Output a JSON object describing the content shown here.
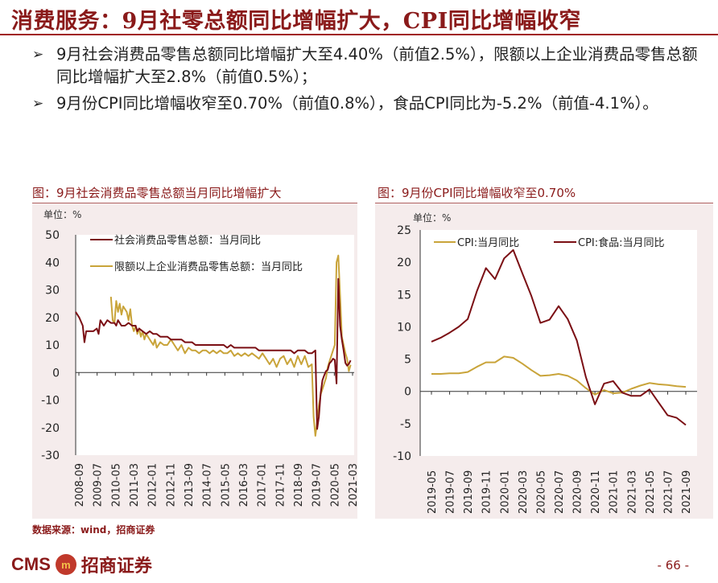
{
  "header": {
    "title": "消费服务：9月社零总额同比增幅扩大，CPI同比增幅收窄"
  },
  "bullets": [
    "9月社会消费品零售总额同比增幅扩大至4.40%（前值2.5%），限额以上企业消费品零售总额同比增幅扩大至2.8%（前值0.5%）；",
    "9月份CPI同比增幅收窄至0.70%（前值0.8%），食品CPI同比为-5.2%（前值-4.1%）。"
  ],
  "bullet_marker": "➢",
  "colors": {
    "dark_red": "#7b0f14",
    "gold": "#c9a43a",
    "brand": "#8a1a1a"
  },
  "chart_data": [
    {
      "type": "line",
      "title": "图：9月社会消费品零售总额当月同比增幅扩大",
      "unit_label": "单位：%",
      "ylim": [
        -30,
        50
      ],
      "yticks": [
        50,
        40,
        30,
        20,
        10,
        0,
        -10,
        -20,
        -30
      ],
      "xlim_index": [
        0,
        158
      ],
      "x_tick_labels": [
        "2008-09",
        "2009-07",
        "2010-05",
        "2011-03",
        "2012-01",
        "2012-11",
        "2013-09",
        "2014-07",
        "2015-05",
        "2016-03",
        "2017-01",
        "2017-11",
        "2018-09",
        "2019-07",
        "2020-05",
        "2021-03"
      ],
      "series": [
        {
          "name": "社会消费品零售总额：当月同比",
          "color": "#7b0f14",
          "points": [
            [
              0,
              22
            ],
            [
              2,
              20
            ],
            [
              4,
              17
            ],
            [
              5,
              11
            ],
            [
              6,
              15
            ],
            [
              8,
              15
            ],
            [
              10,
              15
            ],
            [
              12,
              16
            ],
            [
              13,
              14
            ],
            [
              14,
              19
            ],
            [
              16,
              17
            ],
            [
              18,
              19
            ],
            [
              20,
              18
            ],
            [
              22,
              18
            ],
            [
              23,
              17
            ],
            [
              24,
              19
            ],
            [
              26,
              17
            ],
            [
              28,
              17
            ],
            [
              30,
              18
            ],
            [
              32,
              17
            ],
            [
              34,
              17
            ],
            [
              35,
              15
            ],
            [
              36,
              16
            ],
            [
              38,
              15
            ],
            [
              40,
              14
            ],
            [
              42,
              15
            ],
            [
              44,
              14
            ],
            [
              46,
              14
            ],
            [
              48,
              13
            ],
            [
              50,
              13
            ],
            [
              52,
              13
            ],
            [
              54,
              12
            ],
            [
              56,
              12
            ],
            [
              58,
              12
            ],
            [
              60,
              12
            ],
            [
              62,
              11
            ],
            [
              64,
              11
            ],
            [
              66,
              11
            ],
            [
              68,
              10
            ],
            [
              70,
              10
            ],
            [
              72,
              10
            ],
            [
              74,
              10
            ],
            [
              76,
              10
            ],
            [
              78,
              10
            ],
            [
              80,
              10
            ],
            [
              82,
              10
            ],
            [
              84,
              10
            ],
            [
              86,
              9
            ],
            [
              88,
              10
            ],
            [
              90,
              9
            ],
            [
              92,
              9
            ],
            [
              94,
              9
            ],
            [
              96,
              9
            ],
            [
              98,
              9
            ],
            [
              100,
              9
            ],
            [
              102,
              9
            ],
            [
              104,
              8
            ],
            [
              106,
              8
            ],
            [
              108,
              8
            ],
            [
              110,
              8
            ],
            [
              112,
              8
            ],
            [
              114,
              8
            ],
            [
              116,
              8
            ],
            [
              118,
              8
            ],
            [
              120,
              8
            ],
            [
              122,
              8
            ],
            [
              124,
              7
            ],
            [
              126,
              8
            ],
            [
              128,
              8
            ],
            [
              130,
              8
            ],
            [
              132,
              7
            ],
            [
              134,
              7
            ],
            [
              136,
              8
            ],
            [
              137,
              -20.5
            ],
            [
              138,
              -16
            ],
            [
              139,
              -7.5
            ],
            [
              140,
              -2.8
            ],
            [
              141,
              -1
            ],
            [
              142,
              0.5
            ],
            [
              143,
              1
            ],
            [
              144,
              3.3
            ],
            [
              145,
              4
            ],
            [
              146,
              5
            ],
            [
              147,
              4.6
            ],
            [
              148,
              -4
            ],
            [
              149,
              34
            ],
            [
              150,
              17
            ],
            [
              151,
              12
            ],
            [
              152,
              8
            ],
            [
              153,
              3.5
            ],
            [
              154,
              2.5
            ],
            [
              155,
              3.1
            ],
            [
              156,
              4.4
            ]
          ]
        },
        {
          "name": "限额以上企业消费品零售总额：当月同比",
          "color": "#c9a43a",
          "points": [
            [
              20,
              27.5
            ],
            [
              21,
              19
            ],
            [
              22,
              18
            ],
            [
              23,
              26
            ],
            [
              24,
              22
            ],
            [
              25,
              25
            ],
            [
              26,
              21
            ],
            [
              27,
              24
            ],
            [
              28,
              23
            ],
            [
              29,
              22
            ],
            [
              30,
              19
            ],
            [
              31,
              23
            ],
            [
              32,
              17
            ],
            [
              33,
              15
            ],
            [
              34,
              17
            ],
            [
              35,
              14
            ],
            [
              36,
              16
            ],
            [
              37,
              13
            ],
            [
              38,
              15
            ],
            [
              39,
              12
            ],
            [
              40,
              14
            ],
            [
              42,
              12
            ],
            [
              44,
              10
            ],
            [
              45,
              12
            ],
            [
              46,
              9
            ],
            [
              48,
              11
            ],
            [
              50,
              10
            ],
            [
              52,
              10
            ],
            [
              54,
              12
            ],
            [
              56,
              10
            ],
            [
              58,
              8
            ],
            [
              60,
              10
            ],
            [
              62,
              7
            ],
            [
              64,
              9
            ],
            [
              66,
              8
            ],
            [
              68,
              8
            ],
            [
              70,
              7
            ],
            [
              72,
              8
            ],
            [
              74,
              8
            ],
            [
              76,
              7
            ],
            [
              78,
              8
            ],
            [
              80,
              7
            ],
            [
              82,
              8
            ],
            [
              84,
              7
            ],
            [
              86,
              7
            ],
            [
              88,
              8
            ],
            [
              90,
              6
            ],
            [
              92,
              7
            ],
            [
              94,
              6
            ],
            [
              96,
              7
            ],
            [
              98,
              6
            ],
            [
              100,
              7
            ],
            [
              102,
              6
            ],
            [
              104,
              5
            ],
            [
              106,
              7
            ],
            [
              108,
              5
            ],
            [
              110,
              3
            ],
            [
              112,
              5
            ],
            [
              114,
              2
            ],
            [
              116,
              5
            ],
            [
              118,
              6
            ],
            [
              120,
              3
            ],
            [
              122,
              5
            ],
            [
              124,
              2
            ],
            [
              126,
              6
            ],
            [
              128,
              3
            ],
            [
              130,
              6
            ],
            [
              132,
              2
            ],
            [
              134,
              3
            ],
            [
              135,
              -16
            ],
            [
              136,
              -23
            ],
            [
              137,
              -18
            ],
            [
              138,
              -12
            ],
            [
              139,
              -8
            ],
            [
              140,
              -6
            ],
            [
              141,
              -4
            ],
            [
              142,
              -2
            ],
            [
              143,
              2
            ],
            [
              144,
              4
            ],
            [
              145,
              6
            ],
            [
              146,
              8
            ],
            [
              147,
              10
            ],
            [
              148,
              40
            ],
            [
              149,
              42.5
            ],
            [
              150,
              28
            ],
            [
              151,
              13
            ],
            [
              152,
              10
            ],
            [
              153,
              7
            ],
            [
              154,
              5
            ],
            [
              155,
              0.5
            ],
            [
              156,
              2.8
            ]
          ]
        }
      ],
      "legend": [
        "社会消费品零售总额：当月同比",
        "限额以上企业消费品零售总额：当月同比"
      ]
    },
    {
      "type": "line",
      "title": "图：9月份CPI同比增幅收窄至0.70%",
      "unit_label": "单位：%",
      "ylim": [
        -10,
        25
      ],
      "yticks": [
        25,
        20,
        15,
        10,
        5,
        0,
        -5,
        -10
      ],
      "x_tick_labels": [
        "2019-05",
        "2019-07",
        "2019-09",
        "2019-11",
        "2020-01",
        "2020-03",
        "2020-05",
        "2020-07",
        "2020-09",
        "2020-11",
        "2021-01",
        "2021-03",
        "2021-05",
        "2021-07",
        "2021-09"
      ],
      "x": [
        "2019-05",
        "2019-06",
        "2019-07",
        "2019-08",
        "2019-09",
        "2019-10",
        "2019-11",
        "2019-12",
        "2020-01",
        "2020-02",
        "2020-03",
        "2020-04",
        "2020-05",
        "2020-06",
        "2020-07",
        "2020-08",
        "2020-09",
        "2020-10",
        "2020-11",
        "2020-12",
        "2021-01",
        "2021-02",
        "2021-03",
        "2021-04",
        "2021-05",
        "2021-06",
        "2021-07",
        "2021-08",
        "2021-09"
      ],
      "series": [
        {
          "name": "CPI:当月同比",
          "color": "#c9a43a",
          "values": [
            2.7,
            2.7,
            2.8,
            2.8,
            3.0,
            3.8,
            4.5,
            4.5,
            5.4,
            5.2,
            4.3,
            3.3,
            2.4,
            2.5,
            2.7,
            2.4,
            1.7,
            0.5,
            -0.5,
            0.2,
            -0.3,
            -0.2,
            0.4,
            0.9,
            1.3,
            1.1,
            1.0,
            0.8,
            0.7
          ]
        },
        {
          "name": "CPI:食品:当月同比",
          "color": "#7b0f14",
          "values": [
            7.7,
            8.3,
            9.1,
            10.0,
            11.2,
            15.5,
            19.1,
            17.4,
            20.6,
            21.9,
            18.3,
            14.8,
            10.6,
            11.1,
            13.2,
            11.2,
            7.9,
            2.2,
            -2.0,
            1.2,
            1.6,
            -0.2,
            -0.7,
            -0.7,
            0.3,
            -1.7,
            -3.7,
            -4.1,
            -5.2
          ]
        }
      ],
      "legend": [
        "CPI:当月同比",
        "CPI:食品:当月同比"
      ]
    }
  ],
  "source": "数据来源：wind，招商证券",
  "footer": {
    "logo_text": "CMS",
    "logo_badge": "m",
    "company_cn": "招商证券",
    "page": "- 66 -"
  }
}
